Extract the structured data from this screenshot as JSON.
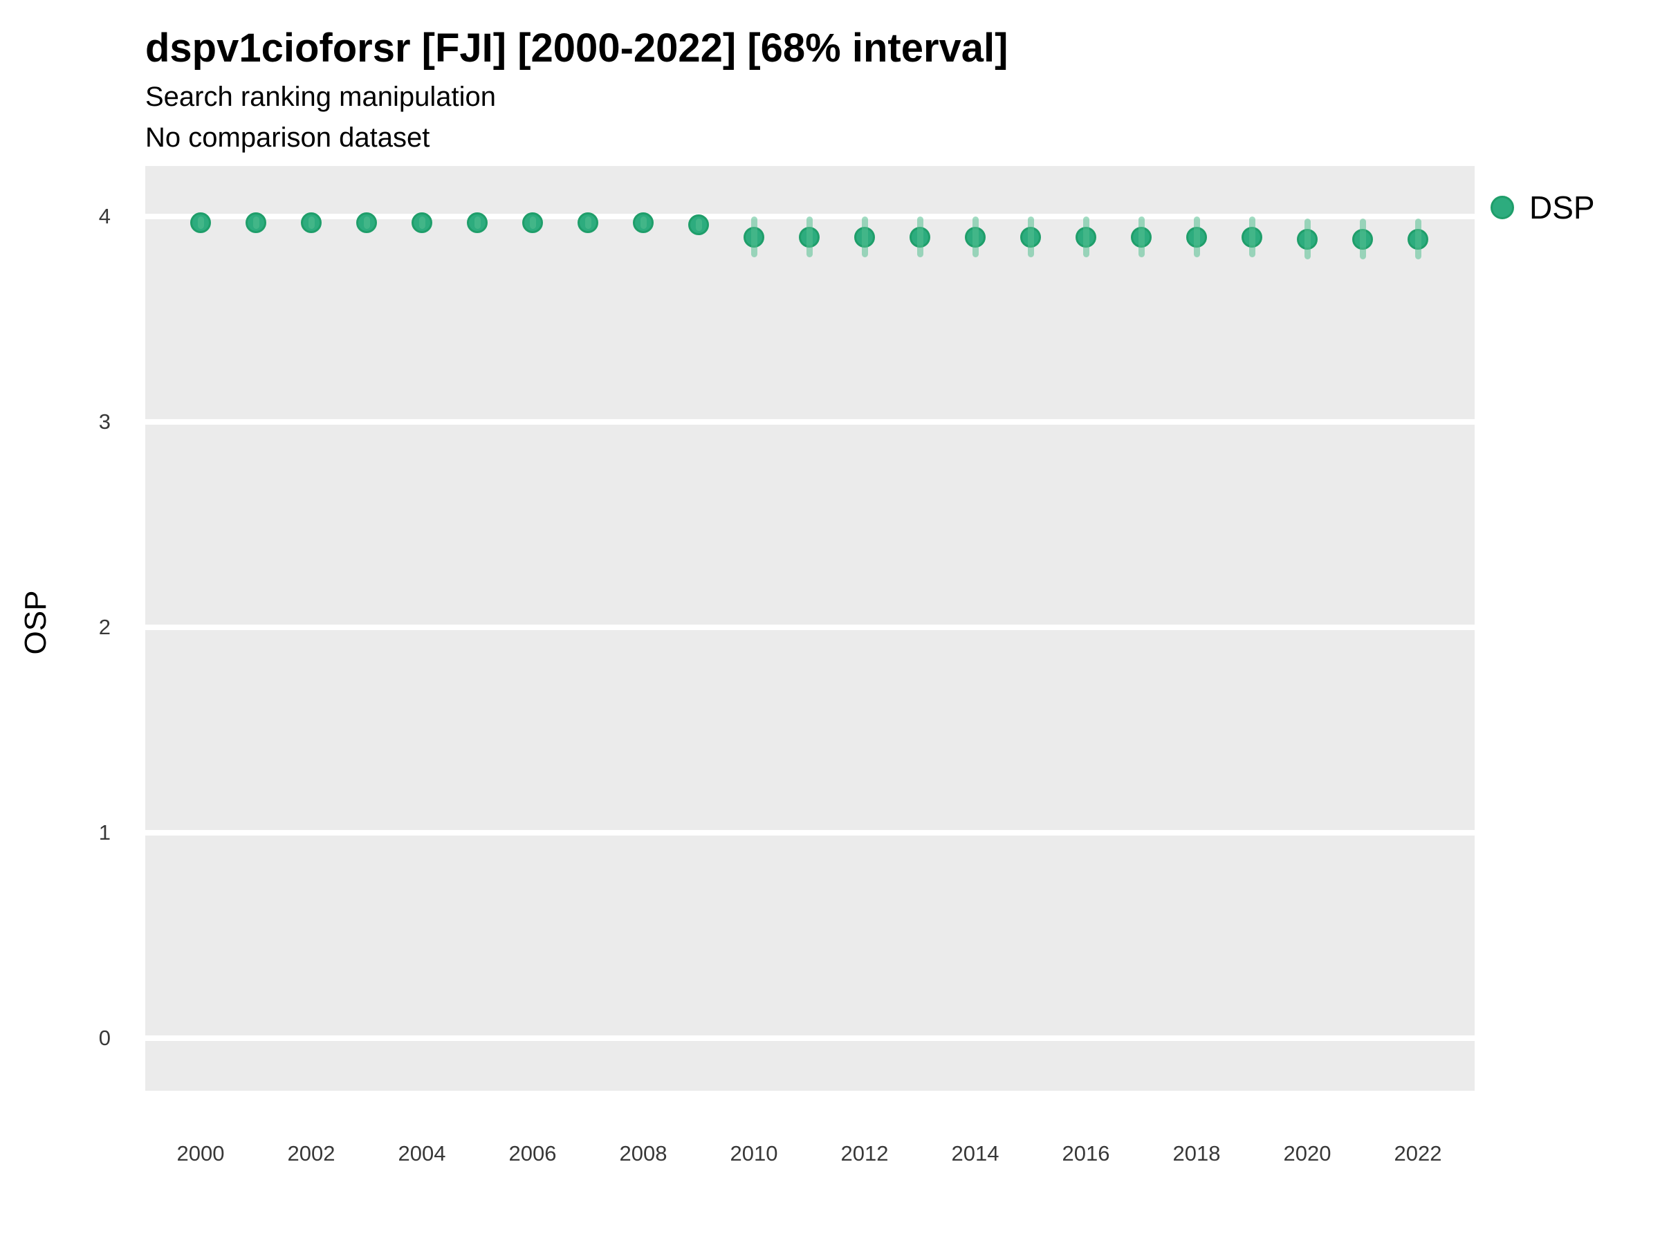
{
  "header": {
    "title": "dspv1cioforsr [FJI] [2000-2022] [68% interval]",
    "subtitle": "Search ranking manipulation",
    "note": "No comparison dataset"
  },
  "axes": {
    "y_label": "OSP",
    "y_ticks": [
      4,
      3,
      2,
      1,
      0
    ],
    "x_ticks": [
      2000,
      2002,
      2004,
      2006,
      2008,
      2010,
      2012,
      2014,
      2016,
      2018,
      2020,
      2022
    ]
  },
  "legend": {
    "position": "right",
    "items": [
      {
        "label": "DSP",
        "color": "#2dac7e"
      }
    ]
  },
  "colors": {
    "panel_bg": "#ebebeb",
    "gridline": "#ffffff",
    "point_fill": "#2dac7e",
    "point_stroke": "#1f9e6a",
    "interval_band": "rgba(83,191,143,0.55)",
    "title_text": "#000000",
    "tick_text": "#383838"
  },
  "chart_data": {
    "type": "scatter",
    "title": "dspv1cioforsr [FJI] [2000-2022] [68% interval]",
    "subtitle": "Search ranking manipulation",
    "note": "No comparison dataset",
    "xlabel": "",
    "ylabel": "OSP",
    "xlim": [
      1999,
      2023
    ],
    "ylim": [
      -0.26,
      4.25
    ],
    "x_ticks": [
      2000,
      2002,
      2004,
      2006,
      2008,
      2010,
      2012,
      2014,
      2016,
      2018,
      2020,
      2022
    ],
    "y_ticks": [
      0,
      1,
      2,
      3,
      4
    ],
    "grid": "horizontal-major-only",
    "legend_position": "right",
    "interval_level": "68%",
    "series": [
      {
        "name": "DSP",
        "x": [
          2000,
          2001,
          2002,
          2003,
          2004,
          2005,
          2006,
          2007,
          2008,
          2009,
          2010,
          2011,
          2012,
          2013,
          2014,
          2015,
          2016,
          2017,
          2018,
          2019,
          2020,
          2021,
          2022
        ],
        "y": [
          3.97,
          3.97,
          3.97,
          3.97,
          3.97,
          3.97,
          3.97,
          3.97,
          3.97,
          3.96,
          3.9,
          3.9,
          3.9,
          3.9,
          3.9,
          3.9,
          3.9,
          3.9,
          3.9,
          3.9,
          3.89,
          3.89,
          3.89
        ],
        "err_lo": [
          0.03,
          0.03,
          0.03,
          0.03,
          0.03,
          0.03,
          0.03,
          0.03,
          0.03,
          0.03,
          0.1,
          0.1,
          0.1,
          0.1,
          0.1,
          0.1,
          0.1,
          0.1,
          0.1,
          0.1,
          0.1,
          0.1,
          0.1
        ],
        "err_hi": [
          0.03,
          0.03,
          0.03,
          0.03,
          0.03,
          0.03,
          0.03,
          0.03,
          0.03,
          0.03,
          0.1,
          0.1,
          0.1,
          0.1,
          0.1,
          0.1,
          0.1,
          0.1,
          0.1,
          0.1,
          0.1,
          0.1,
          0.1
        ]
      }
    ]
  }
}
